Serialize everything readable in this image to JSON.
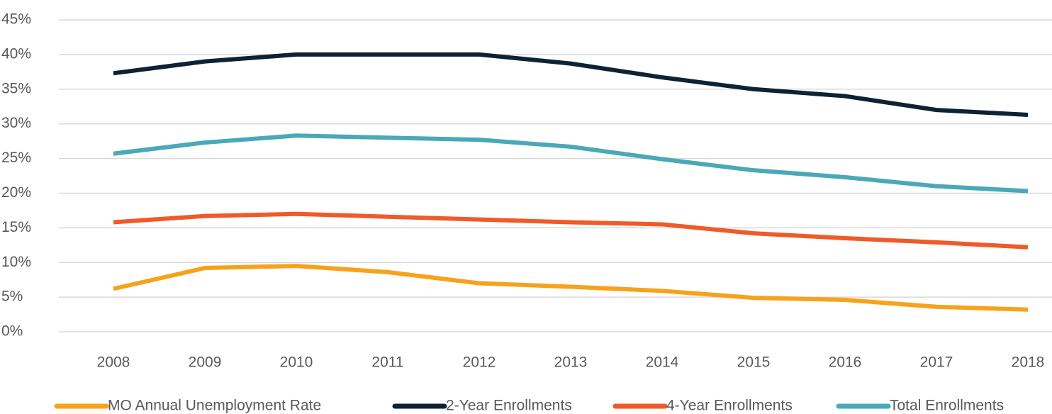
{
  "chart_data": {
    "type": "line",
    "categories": [
      "2008",
      "2009",
      "2010",
      "2011",
      "2012",
      "2013",
      "2014",
      "2015",
      "2016",
      "2017",
      "2018"
    ],
    "series": [
      {
        "name": "MO Annual Unemployment Rate",
        "color": "#f7a21b",
        "values": [
          6.2,
          9.2,
          9.5,
          8.6,
          7.0,
          6.5,
          5.9,
          4.9,
          4.6,
          3.6,
          3.2
        ]
      },
      {
        "name": "2-Year Enrollments",
        "color": "#0d2233",
        "values": [
          37.3,
          39.0,
          40.0,
          40.0,
          40.0,
          38.7,
          36.7,
          35.0,
          34.0,
          32.0,
          31.3
        ]
      },
      {
        "name": "4-Year Enrollments",
        "color": "#f05a28",
        "values": [
          15.8,
          16.7,
          17.0,
          16.6,
          16.2,
          15.8,
          15.5,
          14.2,
          13.5,
          12.9,
          12.2
        ]
      },
      {
        "name": "Total Enrollments",
        "color": "#4aa8b8",
        "values": [
          25.7,
          27.3,
          28.3,
          28.0,
          27.7,
          26.7,
          24.9,
          23.3,
          22.3,
          21.0,
          20.3
        ]
      }
    ],
    "ylim": [
      0,
      45
    ],
    "yticks": [
      {
        "value": 0,
        "label": "0%"
      },
      {
        "value": 5,
        "label": "5%"
      },
      {
        "value": 10,
        "label": "10%"
      },
      {
        "value": 15,
        "label": "15%"
      },
      {
        "value": 20,
        "label": "20%"
      },
      {
        "value": 25,
        "label": "25%"
      },
      {
        "value": 30,
        "label": "30%"
      },
      {
        "value": 35,
        "label": "35%"
      },
      {
        "value": 40,
        "label": "40%"
      },
      {
        "value": 45,
        "label": "45%"
      }
    ],
    "grid": true,
    "legend": "bottom"
  }
}
